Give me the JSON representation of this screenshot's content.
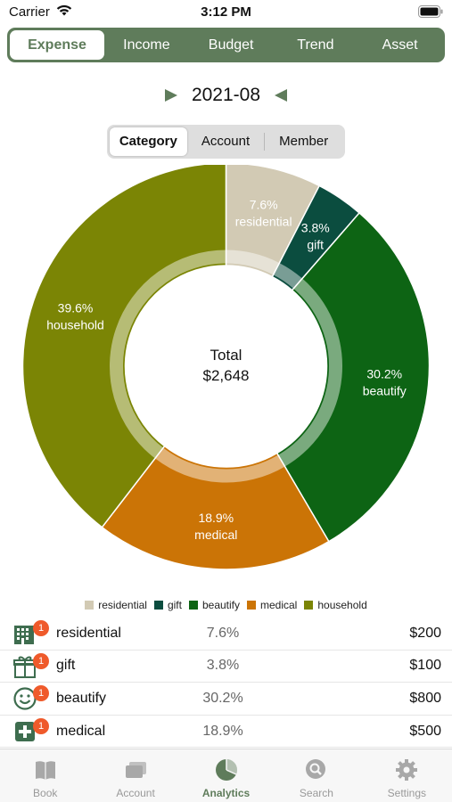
{
  "status_bar": {
    "carrier": "Carrier",
    "time": "3:12 PM"
  },
  "top_tabs": [
    {
      "label": "Expense",
      "active": true
    },
    {
      "label": "Income",
      "active": false
    },
    {
      "label": "Budget",
      "active": false
    },
    {
      "label": "Trend",
      "active": false
    },
    {
      "label": "Asset",
      "active": false
    }
  ],
  "period": {
    "label": "2021-08",
    "prev_icon": "triangle-right-icon",
    "next_icon": "triangle-left-icon"
  },
  "sub_tabs": [
    {
      "label": "Category",
      "active": true
    },
    {
      "label": "Account",
      "active": false
    },
    {
      "label": "Member",
      "active": false
    }
  ],
  "chart_data": {
    "type": "pie",
    "center_label": "Total",
    "center_value": "$2,648",
    "slices": [
      {
        "name": "residential",
        "value": 7.6,
        "label": "7.6%",
        "color": "#d2cab4"
      },
      {
        "name": "gift",
        "value": 3.8,
        "label": "3.8%",
        "color": "#0b4d3f"
      },
      {
        "name": "beautify",
        "value": 30.2,
        "label": "30.2%",
        "color": "#0d6414"
      },
      {
        "name": "medical",
        "value": 18.9,
        "label": "18.9%",
        "color": "#cb7406"
      },
      {
        "name": "household",
        "value": 39.6,
        "label": "39.6%",
        "color": "#7b8505"
      }
    ],
    "legend_position": "bottom"
  },
  "rows": [
    {
      "name": "residential",
      "pct": "7.6%",
      "amount": "$200",
      "badge": "1",
      "icon": "building-icon"
    },
    {
      "name": "gift",
      "pct": "3.8%",
      "amount": "$100",
      "badge": "1",
      "icon": "gift-icon"
    },
    {
      "name": "beautify",
      "pct": "30.2%",
      "amount": "$800",
      "badge": "1",
      "icon": "smiley-icon"
    },
    {
      "name": "medical",
      "pct": "18.9%",
      "amount": "$500",
      "badge": "1",
      "icon": "medical-cross-icon"
    }
  ],
  "tab_bar": [
    {
      "label": "Book",
      "icon": "book-icon",
      "active": false
    },
    {
      "label": "Account",
      "icon": "cards-icon",
      "active": false
    },
    {
      "label": "Analytics",
      "icon": "pie-chart-icon",
      "active": true
    },
    {
      "label": "Search",
      "icon": "search-icon",
      "active": false
    },
    {
      "label": "Settings",
      "icon": "gear-icon",
      "active": false
    }
  ],
  "colors": {
    "accent": "#5f7c5b",
    "badge": "#ef5a2b"
  }
}
